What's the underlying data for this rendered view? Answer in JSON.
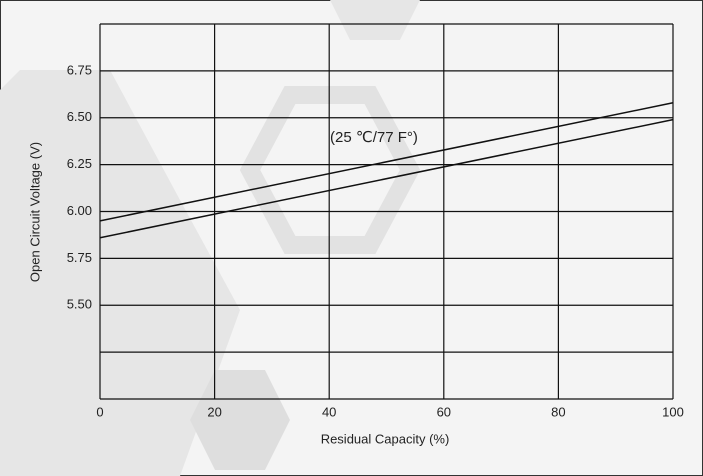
{
  "chart_data": {
    "type": "line",
    "x_label": "Residual Capacity (%)",
    "y_label": "Open Circuit Voltage (V)",
    "annotation": "(25 ℃/77 F°)",
    "xlim": [
      0,
      100
    ],
    "xticks": [
      0,
      20,
      40,
      60,
      80,
      100
    ],
    "ylim": [
      5.0,
      7.0
    ],
    "yticks": [
      {
        "value": 5.5,
        "label": "5.50"
      },
      5.75,
      {
        "value": 6.0,
        "label": "6.00"
      },
      6.25,
      {
        "value": 6.5,
        "label": "6.50"
      },
      6.75
    ],
    "ygrid": [
      5.0,
      5.25,
      5.5,
      5.75,
      6.0,
      6.25,
      6.5,
      6.75,
      7.0
    ],
    "grid": true,
    "x": [
      0,
      100
    ],
    "series": [
      {
        "color": "#111111",
        "values": [
          5.95,
          6.58
        ]
      },
      {
        "color": "#111111",
        "values": [
          5.86,
          6.49
        ]
      }
    ]
  }
}
